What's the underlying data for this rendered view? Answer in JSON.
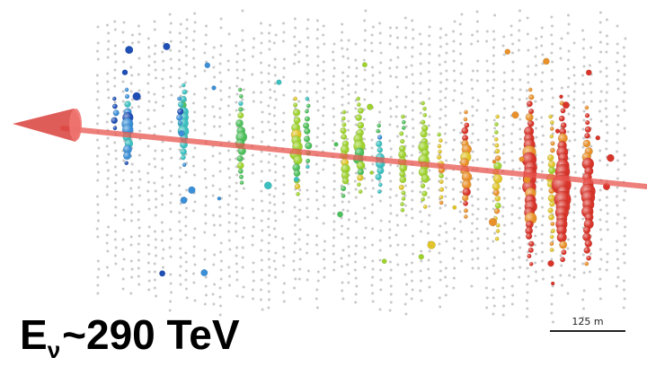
{
  "figure": {
    "energy_label": {
      "symbol": "E",
      "subscript": "ν",
      "value": "~290 TeV"
    },
    "scale_bar": {
      "label": "125 m"
    },
    "colors": {
      "track": "#e8554f",
      "cone": "#d9413c",
      "background": "#ffffff",
      "inactive_dom": "#c9c9c9"
    },
    "hit_color_scale": [
      "#1f4fb5",
      "#3b8fd6",
      "#3bbfbf",
      "#4cbf5a",
      "#9ed22e",
      "#e0c42a",
      "#e8902a",
      "#d8342a"
    ],
    "icons": {
      "arrow": "neutrino-direction-cone-icon"
    }
  }
}
